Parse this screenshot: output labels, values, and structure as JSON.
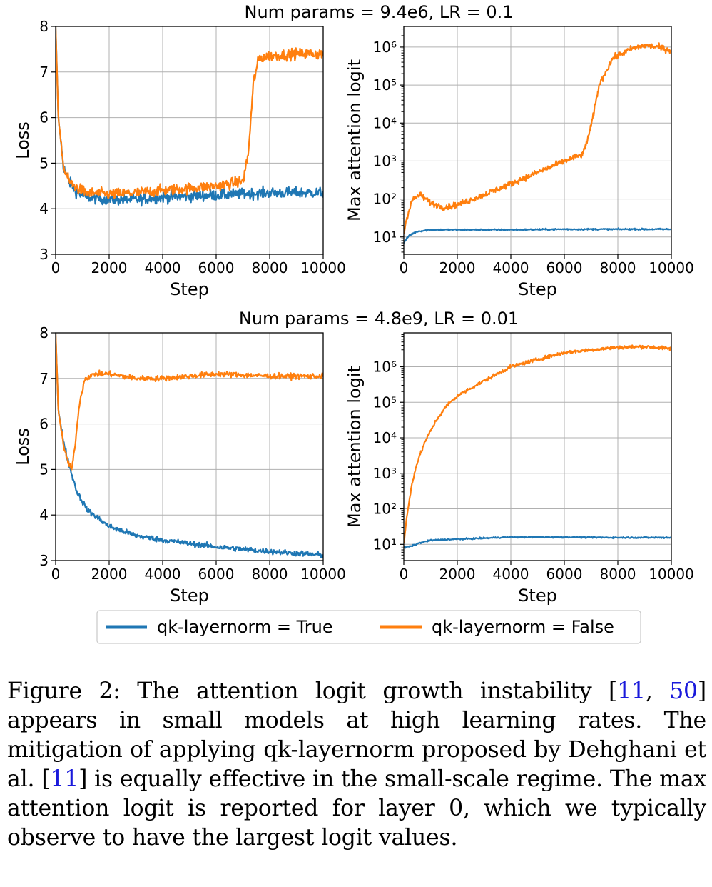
{
  "figure": {
    "legend": [
      {
        "label": "qk-layernorm = True",
        "color": "#1f77b4"
      },
      {
        "label": "qk-layernorm = False",
        "color": "#ff7f0e"
      }
    ]
  },
  "caption": {
    "prefix": "Figure 2: The attention logit growth instability [",
    "cite1": "11",
    "sep": ", ",
    "cite2": "50",
    "mid": "] appears in small models at high learning rates. The mitigation of applying qk-layernorm proposed by Dehghani et al. [",
    "cite3": "11",
    "suffix": "] is equally effective in the small-scale regime. The max attention logit is reported for layer 0, which we typically observe to have the largest logit values."
  },
  "chart_data": [
    {
      "type": "line",
      "row": 0,
      "col": 0,
      "title": "Num params = 9.4e6, LR = 0.1",
      "xlabel": "Step",
      "ylabel": "Loss",
      "xlim": [
        0,
        10000
      ],
      "ylim": [
        3,
        8
      ],
      "yscale": "linear",
      "grid": true,
      "xticks": [
        0,
        2000,
        4000,
        6000,
        8000,
        10000
      ],
      "yticks": [
        3,
        4,
        5,
        6,
        7,
        8
      ],
      "series": [
        {
          "name": "qk-layernorm = True",
          "color": "#1f77b4",
          "noise": 0.12,
          "x": [
            0,
            100,
            300,
            500,
            800,
            1200,
            2000,
            3000,
            4000,
            6000,
            8000,
            10000
          ],
          "y": [
            8,
            6.0,
            4.9,
            4.6,
            4.35,
            4.25,
            4.2,
            4.2,
            4.25,
            4.3,
            4.35,
            4.35
          ]
        },
        {
          "name": "qk-layernorm = False",
          "color": "#ff7f0e",
          "noise": 0.12,
          "x": [
            0,
            100,
            300,
            500,
            800,
            1200,
            2000,
            3000,
            4000,
            5000,
            6000,
            7000,
            7200,
            7400,
            7600,
            8000,
            9000,
            10000
          ],
          "y": [
            8,
            6.0,
            4.9,
            4.6,
            4.45,
            4.35,
            4.32,
            4.35,
            4.4,
            4.45,
            4.5,
            4.6,
            5.2,
            6.8,
            7.3,
            7.35,
            7.4,
            7.4
          ]
        }
      ]
    },
    {
      "type": "line",
      "row": 0,
      "col": 1,
      "title": "",
      "xlabel": "Step",
      "ylabel": "Max attention logit",
      "xlim": [
        0,
        10000
      ],
      "ylim": [
        3.5,
        3500000
      ],
      "yscale": "log",
      "grid": true,
      "xticks": [
        0,
        2000,
        4000,
        6000,
        8000,
        10000
      ],
      "yticks": [
        10,
        100,
        1000,
        10000,
        100000,
        1000000
      ],
      "series": [
        {
          "name": "qk-layernorm = True",
          "color": "#1f77b4",
          "noise": 0.02,
          "x": [
            0,
            200,
            500,
            1000,
            2000,
            4000,
            6000,
            8000,
            10000
          ],
          "y": [
            7,
            11,
            14,
            15.5,
            15.5,
            15.5,
            16,
            16,
            16
          ]
        },
        {
          "name": "qk-layernorm = False",
          "color": "#ff7f0e",
          "noise": 0.08,
          "x": [
            0,
            100,
            300,
            600,
            1000,
            1500,
            2000,
            3000,
            4000,
            5000,
            6000,
            6700,
            7000,
            7300,
            7800,
            8500,
            9000,
            9500,
            10000
          ],
          "y": [
            12,
            30,
            90,
            130,
            80,
            60,
            70,
            130,
            250,
            500,
            1000,
            1500,
            8000,
            100000,
            500000,
            900000,
            1100000,
            1000000,
            800000
          ]
        }
      ]
    },
    {
      "type": "line",
      "row": 1,
      "col": 0,
      "title": "Num params = 4.8e9, LR = 0.01",
      "xlabel": "Step",
      "ylabel": "Loss",
      "xlim": [
        0,
        10000
      ],
      "ylim": [
        3,
        8
      ],
      "yscale": "linear",
      "grid": true,
      "xticks": [
        0,
        2000,
        4000,
        6000,
        8000,
        10000
      ],
      "yticks": [
        3,
        4,
        5,
        6,
        7,
        8
      ],
      "series": [
        {
          "name": "qk-layernorm = True",
          "color": "#1f77b4",
          "noise": 0.06,
          "x": [
            0,
            100,
            300,
            500,
            800,
            1200,
            2000,
            3000,
            4000,
            6000,
            8000,
            10000
          ],
          "y": [
            8,
            6.3,
            5.6,
            5.1,
            4.5,
            4.1,
            3.75,
            3.55,
            3.45,
            3.3,
            3.2,
            3.12
          ]
        },
        {
          "name": "qk-layernorm = False",
          "color": "#ff7f0e",
          "noise": 0.06,
          "x": [
            0,
            100,
            300,
            500,
            600,
            700,
            900,
            1100,
            1500,
            2000,
            3000,
            4000,
            5000,
            6000,
            8000,
            10000
          ],
          "y": [
            8,
            6.3,
            5.5,
            5.1,
            5.0,
            5.4,
            6.5,
            7.0,
            7.1,
            7.1,
            7.0,
            7.0,
            7.05,
            7.1,
            7.05,
            7.05
          ]
        }
      ]
    },
    {
      "type": "line",
      "row": 1,
      "col": 1,
      "title": "",
      "xlabel": "Step",
      "ylabel": "Max attention logit",
      "xlim": [
        0,
        10000
      ],
      "ylim": [
        3.5,
        9000000
      ],
      "yscale": "log",
      "grid": true,
      "xticks": [
        0,
        2000,
        4000,
        6000,
        8000,
        10000
      ],
      "yticks": [
        10,
        100,
        1000,
        10000,
        100000,
        1000000
      ],
      "series": [
        {
          "name": "qk-layernorm = True",
          "color": "#1f77b4",
          "noise": 0.02,
          "x": [
            0,
            300,
            600,
            1000,
            2000,
            4000,
            6000,
            8000,
            10000
          ],
          "y": [
            8,
            9,
            11,
            13,
            14,
            16,
            16,
            15.5,
            15.5
          ]
        },
        {
          "name": "qk-layernorm = False",
          "color": "#ff7f0e",
          "noise": 0.05,
          "x": [
            0,
            100,
            300,
            500,
            800,
            1200,
            1600,
            2000,
            2500,
            3000,
            4000,
            5000,
            6000,
            7000,
            8000,
            9000,
            10000
          ],
          "y": [
            10,
            50,
            500,
            2000,
            8000,
            30000,
            80000,
            150000,
            250000,
            400000,
            1000000,
            1600000,
            2500000,
            3000000,
            3500000,
            3700000,
            3200000
          ]
        }
      ]
    }
  ]
}
